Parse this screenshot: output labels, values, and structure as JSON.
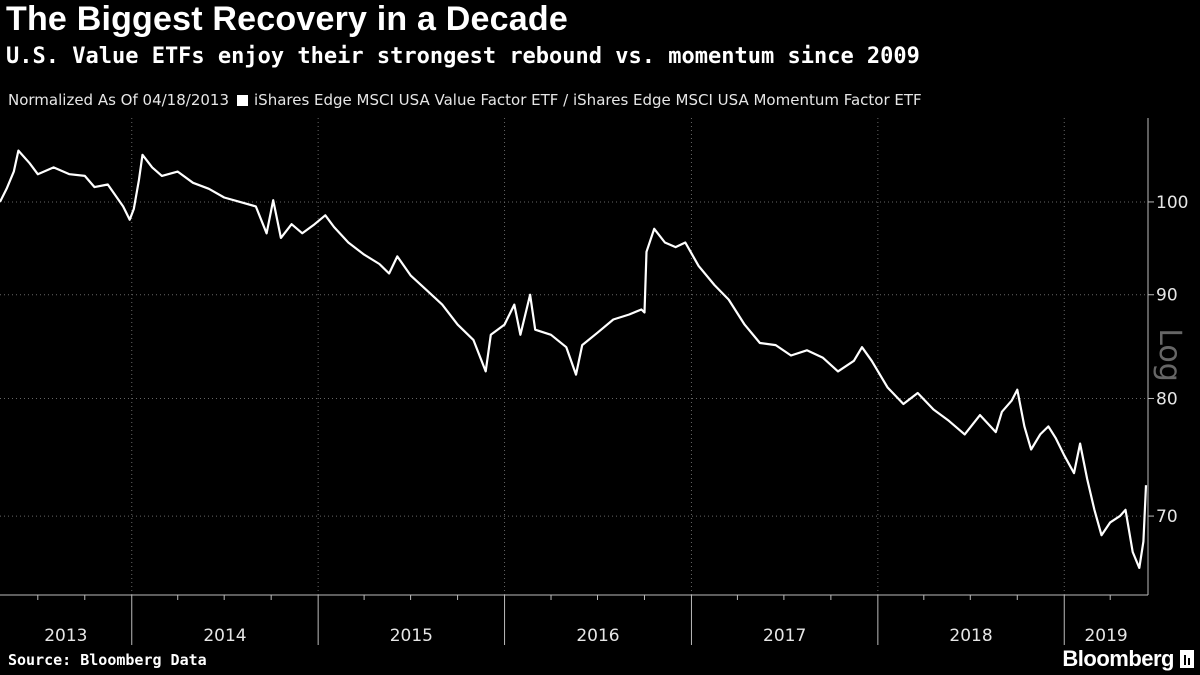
{
  "title": "The Biggest Recovery in a Decade",
  "subtitle": "U.S. Value ETFs enjoy their strongest rebound vs. momentum since 2009",
  "legend": {
    "prefix": "Normalized As Of 04/18/2013",
    "series_label": "iShares Edge MSCI USA Value Factor ETF / iShares Edge MSCI USA Momentum Factor ETF"
  },
  "source": "Source: Bloomberg Data",
  "brand": "Bloomberg",
  "colors": {
    "background": "#000000",
    "line": "#ffffff",
    "grid": "#666666",
    "muted_label": "#666666"
  },
  "chart_data": {
    "type": "line",
    "y_scale": "log",
    "scale_label": "Log",
    "ylim": [
      64,
      110
    ],
    "y_ticks": [
      70,
      80,
      90,
      100
    ],
    "x_start": "2013-04-18",
    "x_end": "2019-06-14",
    "year_labels": [
      "2013",
      "2014",
      "2015",
      "2016",
      "2017",
      "2018",
      "2019"
    ],
    "grid": true,
    "series": [
      {
        "name": "iShares Edge MSCI USA Value Factor ETF / iShares Edge MSCI USA Momentum Factor ETF",
        "points": [
          [
            "2013-04-18",
            100.0
          ],
          [
            "2013-05-01",
            101.5
          ],
          [
            "2013-05-15",
            103.5
          ],
          [
            "2013-05-24",
            106.0
          ],
          [
            "2013-06-15",
            104.5
          ],
          [
            "2013-07-01",
            103.2
          ],
          [
            "2013-08-01",
            104.0
          ],
          [
            "2013-09-01",
            103.2
          ],
          [
            "2013-10-01",
            103.0
          ],
          [
            "2013-10-20",
            101.7
          ],
          [
            "2013-11-15",
            102.0
          ],
          [
            "2013-12-15",
            99.5
          ],
          [
            "2013-12-28",
            98.0
          ],
          [
            "2014-01-05",
            99.2
          ],
          [
            "2014-01-15",
            102.5
          ],
          [
            "2014-01-22",
            105.5
          ],
          [
            "2014-02-10",
            104.0
          ],
          [
            "2014-03-01",
            103.0
          ],
          [
            "2014-04-01",
            103.5
          ],
          [
            "2014-05-01",
            102.2
          ],
          [
            "2014-06-01",
            101.5
          ],
          [
            "2014-07-01",
            100.5
          ],
          [
            "2014-08-01",
            100.0
          ],
          [
            "2014-09-01",
            99.5
          ],
          [
            "2014-09-22",
            96.5
          ],
          [
            "2014-10-05",
            100.2
          ],
          [
            "2014-10-20",
            96.0
          ],
          [
            "2014-11-10",
            97.5
          ],
          [
            "2014-12-01",
            96.5
          ],
          [
            "2014-12-25",
            97.5
          ],
          [
            "2015-01-15",
            98.5
          ],
          [
            "2015-02-01",
            97.2
          ],
          [
            "2015-03-01",
            95.5
          ],
          [
            "2015-04-01",
            94.2
          ],
          [
            "2015-05-01",
            93.2
          ],
          [
            "2015-05-20",
            92.2
          ],
          [
            "2015-06-05",
            94.0
          ],
          [
            "2015-07-01",
            92.0
          ],
          [
            "2015-08-01",
            90.5
          ],
          [
            "2015-09-01",
            89.0
          ],
          [
            "2015-10-01",
            87.0
          ],
          [
            "2015-11-01",
            85.5
          ],
          [
            "2015-11-25",
            82.5
          ],
          [
            "2015-12-05",
            86.0
          ],
          [
            "2016-01-01",
            87.0
          ],
          [
            "2016-01-20",
            89.0
          ],
          [
            "2016-02-01",
            86.0
          ],
          [
            "2016-02-20",
            90.0
          ],
          [
            "2016-03-01",
            86.5
          ],
          [
            "2016-04-01",
            86.0
          ],
          [
            "2016-05-01",
            84.8
          ],
          [
            "2016-05-20",
            82.2
          ],
          [
            "2016-06-01",
            85.0
          ],
          [
            "2016-07-01",
            86.2
          ],
          [
            "2016-08-01",
            87.5
          ],
          [
            "2016-09-01",
            88.0
          ],
          [
            "2016-09-25",
            88.5
          ],
          [
            "2016-10-01",
            88.2
          ],
          [
            "2016-10-05",
            94.5
          ],
          [
            "2016-10-20",
            97.0
          ],
          [
            "2016-11-10",
            95.5
          ],
          [
            "2016-12-01",
            95.0
          ],
          [
            "2016-12-20",
            95.5
          ],
          [
            "2017-01-15",
            93.0
          ],
          [
            "2017-02-15",
            91.0
          ],
          [
            "2017-03-15",
            89.5
          ],
          [
            "2017-04-15",
            87.0
          ],
          [
            "2017-05-15",
            85.2
          ],
          [
            "2017-06-15",
            85.0
          ],
          [
            "2017-07-15",
            84.0
          ],
          [
            "2017-08-15",
            84.5
          ],
          [
            "2017-09-15",
            83.8
          ],
          [
            "2017-10-15",
            82.5
          ],
          [
            "2017-11-15",
            83.5
          ],
          [
            "2017-12-01",
            84.8
          ],
          [
            "2017-12-20",
            83.5
          ],
          [
            "2018-01-20",
            81.0
          ],
          [
            "2018-02-20",
            79.5
          ],
          [
            "2018-03-20",
            80.5
          ],
          [
            "2018-04-20",
            79.0
          ],
          [
            "2018-05-20",
            78.0
          ],
          [
            "2018-06-20",
            76.8
          ],
          [
            "2018-07-20",
            78.5
          ],
          [
            "2018-08-20",
            77.0
          ],
          [
            "2018-09-01",
            78.8
          ],
          [
            "2018-09-20",
            79.8
          ],
          [
            "2018-10-01",
            80.8
          ],
          [
            "2018-10-15",
            77.5
          ],
          [
            "2018-10-28",
            75.5
          ],
          [
            "2018-11-15",
            76.8
          ],
          [
            "2018-12-01",
            77.5
          ],
          [
            "2018-12-15",
            76.5
          ],
          [
            "2019-01-01",
            75.0
          ],
          [
            "2019-01-20",
            73.5
          ],
          [
            "2019-02-01",
            76.0
          ],
          [
            "2019-02-15",
            73.0
          ],
          [
            "2019-03-01",
            70.5
          ],
          [
            "2019-03-15",
            68.5
          ],
          [
            "2019-04-01",
            69.5
          ],
          [
            "2019-04-20",
            70.0
          ],
          [
            "2019-05-01",
            70.5
          ],
          [
            "2019-05-15",
            67.2
          ],
          [
            "2019-05-28",
            66.0
          ],
          [
            "2019-06-05",
            68.0
          ],
          [
            "2019-06-10",
            72.5
          ]
        ]
      }
    ]
  }
}
